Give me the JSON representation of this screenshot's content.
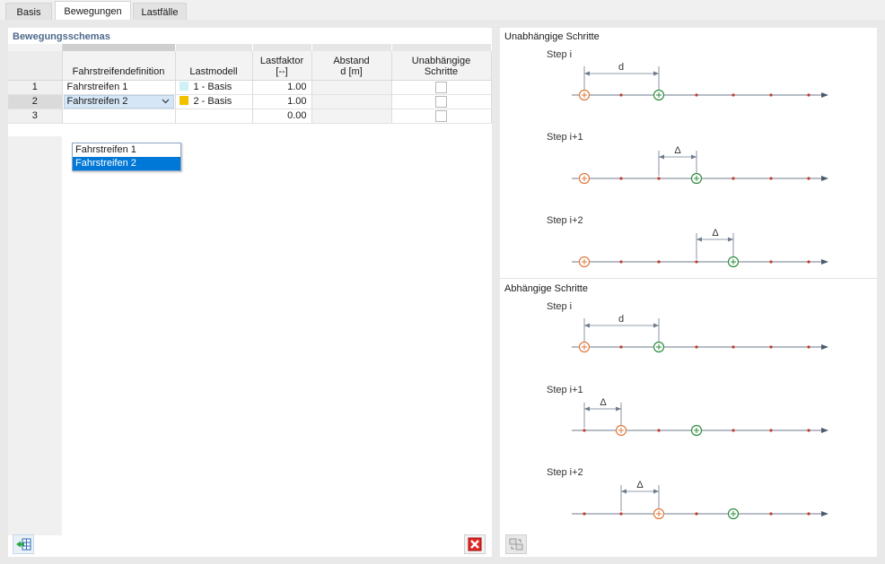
{
  "tabs": [
    {
      "label": "Basis"
    },
    {
      "label": "Bewegungen"
    },
    {
      "label": "Lastfälle"
    }
  ],
  "left": {
    "title": "Bewegungsschemas",
    "columns": {
      "lane_def": "Fahrstreifendefinition",
      "load_model": "Lastmodell",
      "load_factor": "Lastfaktor\n[--]",
      "distance": "Abstand\nd [m]",
      "independent": "Unabhängige\nSchritte"
    },
    "rows": [
      {
        "num": "1",
        "lane": "Fahrstreifen 1",
        "model": "1 - Basis",
        "model_color": "#cdf1f4",
        "factor": "1.00"
      },
      {
        "num": "2",
        "lane": "Fahrstreifen 2",
        "model": "2 - Basis",
        "model_color": "#f2c200",
        "factor": "1.00"
      },
      {
        "num": "3",
        "lane": "",
        "model": "",
        "model_color": "",
        "factor": "0.00"
      }
    ],
    "dropdown_options": [
      "Fahrstreifen 1",
      "Fahrstreifen 2"
    ],
    "icons": {
      "import": "import-table-icon",
      "delete": "delete-icon"
    }
  },
  "right": {
    "independent_title": "Unabhängige Schritte",
    "dependent_title": "Abhängige Schritte",
    "steps": [
      "Step i",
      "Step i+1",
      "Step i+2",
      "Step i",
      "Step i+1",
      "Step i+2"
    ],
    "dim_d": "d",
    "dim_delta": "Δ",
    "colors": {
      "orange": "#e07a3c",
      "green": "#2e8b3e",
      "axis": "#6e7b8c",
      "dot": "#c23b2b"
    }
  }
}
